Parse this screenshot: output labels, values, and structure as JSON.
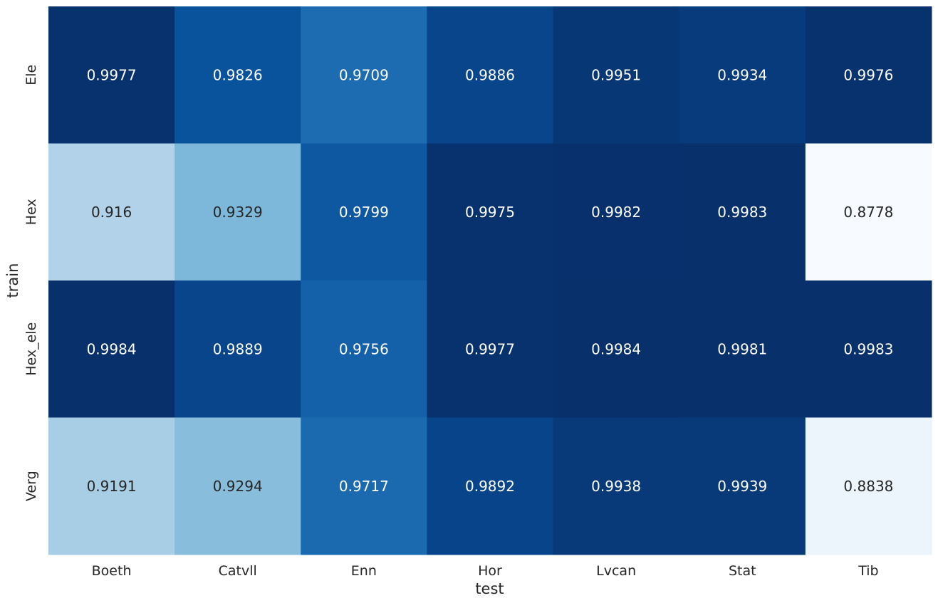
{
  "chart_data": {
    "type": "heatmap",
    "title": "",
    "xlabel": "test",
    "ylabel": "train",
    "x_categories": [
      "Boeth",
      "Catvll",
      "Enn",
      "Hor",
      "Lvcan",
      "Stat",
      "Tib"
    ],
    "y_categories": [
      "Ele",
      "Hex",
      "Hex_ele",
      "Verg"
    ],
    "values": [
      [
        "0.9977",
        "0.9826",
        "0.9709",
        "0.9886",
        "0.9951",
        "0.9934",
        "0.9976"
      ],
      [
        "0.916",
        "0.9329",
        "0.9799",
        "0.9975",
        "0.9982",
        "0.9983",
        "0.8778"
      ],
      [
        "0.9984",
        "0.9889",
        "0.9756",
        "0.9977",
        "0.9984",
        "0.9981",
        "0.9983"
      ],
      [
        "0.9191",
        "0.9294",
        "0.9717",
        "0.9892",
        "0.9938",
        "0.9939",
        "0.8838"
      ]
    ],
    "colormap": "Blues",
    "color_range": [
      0.8778,
      0.9984
    ],
    "colorbar": false,
    "annotations": true
  }
}
